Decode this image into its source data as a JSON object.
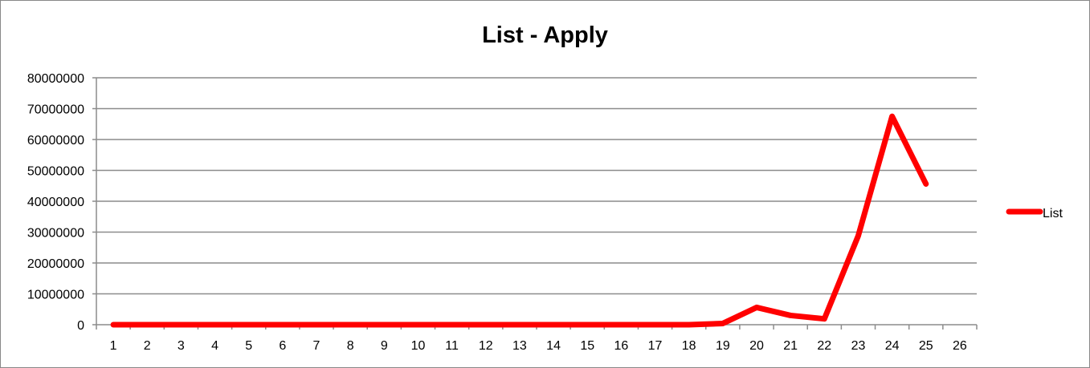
{
  "chart_data": {
    "type": "line",
    "title": "List - Apply",
    "xlabel": "",
    "ylabel": "",
    "categories": [
      "1",
      "2",
      "3",
      "4",
      "5",
      "6",
      "7",
      "8",
      "9",
      "10",
      "11",
      "12",
      "13",
      "14",
      "15",
      "16",
      "17",
      "18",
      "19",
      "20",
      "21",
      "22",
      "23",
      "24",
      "25",
      "26"
    ],
    "ylim": [
      0,
      80000000
    ],
    "yticks": [
      "0",
      "10000000",
      "20000000",
      "30000000",
      "40000000",
      "50000000",
      "60000000",
      "70000000",
      "80000000"
    ],
    "grid": true,
    "legend": "right",
    "series": [
      {
        "name": "List",
        "color": "#ff0000",
        "values": [
          0,
          0,
          0,
          0,
          0,
          0,
          0,
          0,
          0,
          0,
          0,
          0,
          0,
          0,
          0,
          0,
          0,
          0,
          400000,
          5600000,
          3000000,
          1900000,
          28800000,
          67500000,
          45600000,
          null
        ]
      }
    ]
  }
}
